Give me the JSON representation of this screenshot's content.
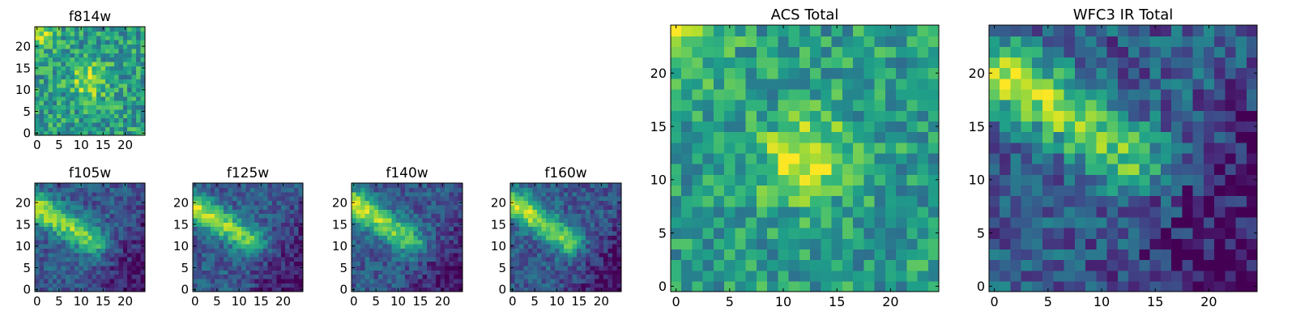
{
  "chart_data": [
    {
      "type": "heatmap",
      "title": "f814w",
      "xticks": [
        0,
        5,
        10,
        15,
        20
      ],
      "yticks": [
        0,
        5,
        10,
        15,
        20
      ],
      "xlim": [
        -0.5,
        24.5
      ],
      "ylim": [
        -0.5,
        24.5
      ],
      "colormap": "viridis",
      "structure": {
        "kind": "blob",
        "center": [
          12,
          12
        ],
        "sigma": 2.6,
        "corner_glow": "top-left",
        "noise": 0.22
      }
    },
    {
      "type": "heatmap",
      "title": "f105w",
      "xticks": [
        0,
        5,
        10,
        15,
        20
      ],
      "yticks": [
        0,
        5,
        10,
        15,
        20
      ],
      "xlim": [
        -0.5,
        24.5
      ],
      "ylim": [
        -0.5,
        24.5
      ],
      "colormap": "viridis",
      "structure": {
        "kind": "diagonal-band",
        "from": [
          0,
          19
        ],
        "to": [
          13,
          11
        ],
        "noise": 0.14
      }
    },
    {
      "type": "heatmap",
      "title": "f125w",
      "xticks": [
        0,
        5,
        10,
        15,
        20
      ],
      "yticks": [
        0,
        5,
        10,
        15,
        20
      ],
      "xlim": [
        -0.5,
        24.5
      ],
      "ylim": [
        -0.5,
        24.5
      ],
      "colormap": "viridis",
      "structure": {
        "kind": "diagonal-band",
        "from": [
          0,
          19
        ],
        "to": [
          13,
          11
        ],
        "noise": 0.14
      }
    },
    {
      "type": "heatmap",
      "title": "f140w",
      "xticks": [
        0,
        5,
        10,
        15,
        20
      ],
      "yticks": [
        0,
        5,
        10,
        15,
        20
      ],
      "xlim": [
        -0.5,
        24.5
      ],
      "ylim": [
        -0.5,
        24.5
      ],
      "colormap": "viridis",
      "structure": {
        "kind": "diagonal-band",
        "from": [
          0,
          20
        ],
        "to": [
          13,
          11
        ],
        "noise": 0.14
      }
    },
    {
      "type": "heatmap",
      "title": "f160w",
      "xticks": [
        0,
        5,
        10,
        15,
        20
      ],
      "yticks": [
        0,
        5,
        10,
        15,
        20
      ],
      "xlim": [
        -0.5,
        24.5
      ],
      "ylim": [
        -0.5,
        24.5
      ],
      "colormap": "viridis",
      "structure": {
        "kind": "diagonal-band",
        "from": [
          0,
          20
        ],
        "to": [
          13,
          11
        ],
        "noise": 0.14
      }
    },
    {
      "type": "heatmap",
      "title": "ACS Total",
      "xticks": [
        0,
        5,
        10,
        15,
        20
      ],
      "yticks": [
        0,
        5,
        10,
        15,
        20
      ],
      "xlim": [
        -0.5,
        24.5
      ],
      "ylim": [
        -0.5,
        24.5
      ],
      "colormap": "viridis",
      "structure": {
        "kind": "blob",
        "center": [
          12,
          12
        ],
        "sigma": 2.8,
        "corner_glow": "top-left",
        "noise": 0.2
      }
    },
    {
      "type": "heatmap",
      "title": "WFC3 IR Total",
      "xticks": [
        0,
        5,
        10,
        15,
        20
      ],
      "yticks": [
        0,
        5,
        10,
        15,
        20
      ],
      "xlim": [
        -0.5,
        24.5
      ],
      "ylim": [
        -0.5,
        24.5
      ],
      "colormap": "viridis",
      "structure": {
        "kind": "diagonal-band",
        "from": [
          1,
          20
        ],
        "to": [
          13,
          12
        ],
        "noise": 0.2
      }
    }
  ]
}
